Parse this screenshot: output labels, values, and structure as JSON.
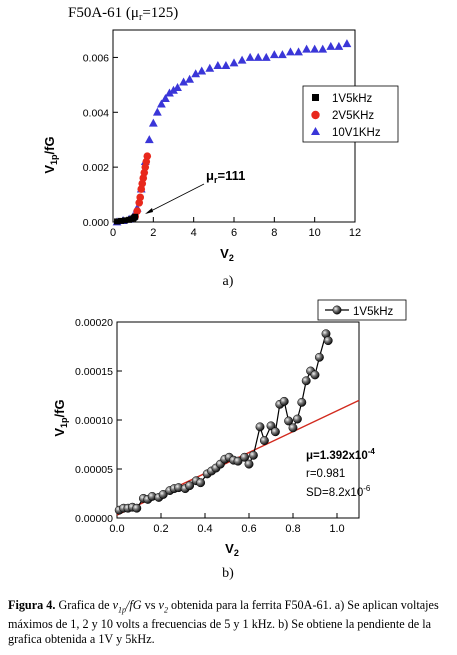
{
  "figure": {
    "panel_a_label": "a)",
    "panel_b_label": "b)",
    "caption_lead": "Figura 4.",
    "caption_text_1": "Grafica de",
    "caption_var_v": "v",
    "caption_var_sub_1p": "1p",
    "caption_var_fG": "/fG",
    "caption_vs": "vs",
    "caption_var_v2": "v",
    "caption_var_sub_2": "2",
    "caption_text_2": "obtenida para la ferrita F50A-61. a) Se aplican voltajes máximos de 1, 2 y 10 volts a frecuencias de 5 y 1 kHz. b) Se obtiene la pendiente de la grafica obtenida a 1V y 5kHz."
  },
  "chart_data": [
    {
      "type": "scatter",
      "title": "F50A-61 (μr=125)",
      "title_main": "F50A-61 (",
      "title_mu": "μ",
      "title_sub": "r",
      "title_rest": "=125)",
      "xlabel": "V",
      "xlabel_sub": "2",
      "ylabel": "V",
      "ylabel_sub": "1p",
      "ylabel_rest": "/fG",
      "xlim": [
        0,
        12
      ],
      "ylim": [
        0,
        0.007
      ],
      "xticks": [
        "0",
        "2",
        "4",
        "6",
        "8",
        "10",
        "12"
      ],
      "yticks": [
        "0.000",
        "0.002",
        "0.004",
        "0.006"
      ],
      "annotation": {
        "mu": "μ",
        "sub": "r",
        "text": "=111",
        "x": 1.6,
        "y": 5e-05
      },
      "legend_position": "center-right",
      "series": [
        {
          "name": "1V5kHz",
          "marker": "square",
          "color": "#000000",
          "x": [
            0.2,
            0.4,
            0.6,
            0.8,
            0.9,
            1.0,
            1.05,
            1.1
          ],
          "y": [
            2e-05,
            4e-05,
            6e-05,
            8e-05,
            0.0001,
            0.00013,
            0.00016,
            0.00019
          ]
        },
        {
          "name": "2V5KHz",
          "marker": "circle",
          "color": "#e8281c",
          "x": [
            1.1,
            1.2,
            1.3,
            1.35,
            1.4,
            1.45,
            1.5,
            1.55,
            1.6,
            1.65,
            1.7
          ],
          "y": [
            0.0002,
            0.0004,
            0.0007,
            0.0009,
            0.0012,
            0.0014,
            0.0016,
            0.0018,
            0.002,
            0.0022,
            0.0024
          ]
        },
        {
          "name": "10V1KHz",
          "marker": "triangle",
          "color": "#3a36d8",
          "x": [
            0.2,
            0.5,
            0.8,
            1.0,
            1.2,
            1.4,
            1.6,
            1.8,
            2.0,
            2.2,
            2.4,
            2.6,
            2.8,
            3.0,
            3.2,
            3.5,
            3.8,
            4.1,
            4.4,
            4.8,
            5.2,
            5.6,
            6.0,
            6.4,
            6.8,
            7.2,
            7.6,
            8.0,
            8.4,
            8.8,
            9.2,
            9.6,
            10.0,
            10.4,
            10.8,
            11.2,
            11.6
          ],
          "y": [
            0.0,
            5e-05,
            0.0001,
            0.0002,
            0.0005,
            0.0012,
            0.0022,
            0.003,
            0.0036,
            0.004,
            0.0043,
            0.0045,
            0.0047,
            0.0048,
            0.0049,
            0.0051,
            0.0052,
            0.0054,
            0.0055,
            0.0056,
            0.0057,
            0.0057,
            0.0058,
            0.0059,
            0.006,
            0.006,
            0.006,
            0.0061,
            0.0061,
            0.0062,
            0.0062,
            0.0063,
            0.0063,
            0.0063,
            0.0064,
            0.0064,
            0.0065
          ]
        }
      ]
    },
    {
      "type": "scatter",
      "xlabel": "V",
      "xlabel_sub": "2",
      "ylabel": "V",
      "ylabel_sub": "1p",
      "ylabel_rest": "/fG",
      "xlim": [
        0,
        1.1
      ],
      "ylim": [
        0,
        0.0002
      ],
      "xticks": [
        "0.0",
        "0.2",
        "0.4",
        "0.6",
        "0.8",
        "1.0"
      ],
      "yticks": [
        "0.00000",
        "0.00005",
        "0.00010",
        "0.00015",
        "0.00020"
      ],
      "legend_position": "top-right",
      "legend_label": "1V5kHz",
      "fit_line": {
        "color": "#d22a1e",
        "x": [
          0.0,
          1.1
        ],
        "y": [
          3e-06,
          0.00012
        ]
      },
      "stats": {
        "mu_symbol": "μ",
        "mu_text": "=1.392x10",
        "mu_exp": "-4",
        "r_text": "r=0.981",
        "sd_text": "SD=8.2x10",
        "sd_exp": "-6"
      },
      "series": [
        {
          "name": "1V5kHz",
          "marker": "sphere",
          "color": "#222222",
          "x": [
            0.01,
            0.03,
            0.05,
            0.07,
            0.09,
            0.12,
            0.14,
            0.16,
            0.19,
            0.21,
            0.24,
            0.26,
            0.28,
            0.31,
            0.33,
            0.36,
            0.38,
            0.41,
            0.43,
            0.45,
            0.47,
            0.49,
            0.51,
            0.53,
            0.55,
            0.58,
            0.6,
            0.62,
            0.65,
            0.67,
            0.7,
            0.72,
            0.74,
            0.76,
            0.78,
            0.8,
            0.82,
            0.84,
            0.86,
            0.88,
            0.9,
            0.92,
            0.95,
            0.96
          ],
          "y": [
            8e-06,
            1e-05,
            1e-05,
            1.1e-05,
            1e-05,
            2e-05,
            1.9e-05,
            2.2e-05,
            2.1e-05,
            2.4e-05,
            2.8e-05,
            3e-05,
            3.1e-05,
            3e-05,
            3.3e-05,
            3.8e-05,
            3.6e-05,
            4.5e-05,
            4.8e-05,
            5.1e-05,
            5.5e-05,
            6e-05,
            6.2e-05,
            5.9e-05,
            5.8e-05,
            6.2e-05,
            5.5e-05,
            6.4e-05,
            9.3e-05,
            7.9e-05,
            9.4e-05,
            8.8e-05,
            0.000116,
            0.000119,
            9.9e-05,
            9.2e-05,
            0.000101,
            0.000118,
            0.00014,
            0.00015,
            0.000146,
            0.000164,
            0.000188,
            0.000181
          ]
        }
      ]
    }
  ]
}
